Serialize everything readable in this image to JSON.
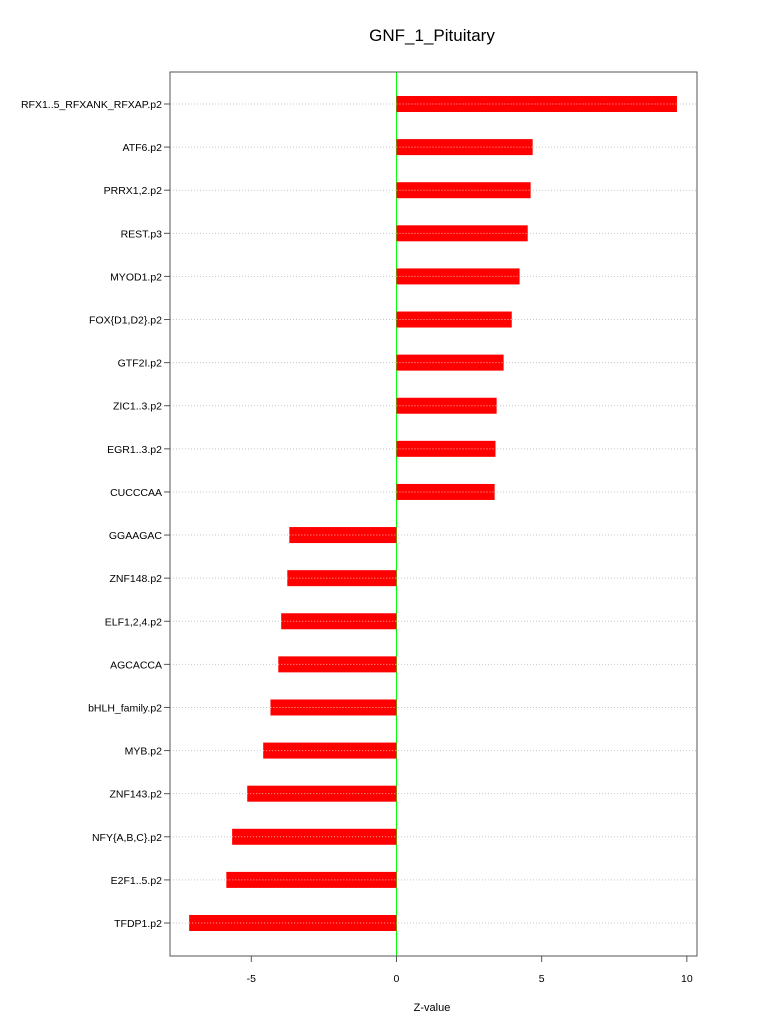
{
  "chart_data": {
    "type": "bar",
    "orientation": "horizontal",
    "title": "GNF_1_Pituitary",
    "xlabel": "Z-value",
    "ylabel": "",
    "xlim": [
      -7.8,
      10.35
    ],
    "xticks": [
      -5,
      0,
      5,
      10
    ],
    "grid": true,
    "categories": [
      "RFX1..5_RFXANK_RFXAP.p2",
      "ATF6.p2",
      "PRRX1,2.p2",
      "REST.p3",
      "MYOD1.p2",
      "FOX{D1,D2}.p2",
      "GTF2I.p2",
      "ZIC1..3.p2",
      "EGR1..3.p2",
      "CUCCCAA",
      "GGAAGAC",
      "ZNF148.p2",
      "ELF1,2,4.p2",
      "AGCACCA",
      "bHLH_family.p2",
      "MYB.p2",
      "ZNF143.p2",
      "NFY{A,B,C}.p2",
      "E2F1..5.p2",
      "TFDP1.p2"
    ],
    "values": [
      9.66,
      4.69,
      4.62,
      4.52,
      4.24,
      3.97,
      3.69,
      3.45,
      3.41,
      3.38,
      -3.69,
      -3.76,
      -3.97,
      -4.07,
      -4.34,
      -4.59,
      -5.14,
      -5.66,
      -5.86,
      -7.14
    ],
    "colors": {
      "bar": "#ff0000",
      "zero_line": "#00ff00",
      "grid": "#c8c8c8",
      "axis": "#555555"
    }
  }
}
